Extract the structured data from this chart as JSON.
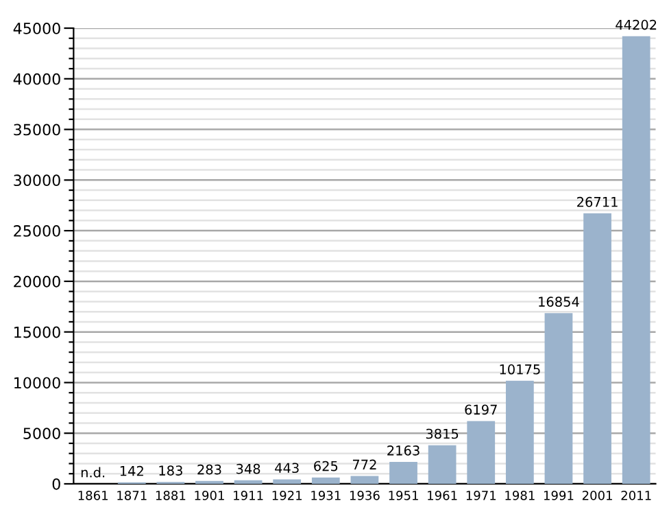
{
  "chart_data": {
    "type": "bar",
    "categories": [
      "1861",
      "1871",
      "1881",
      "1901",
      "1911",
      "1921",
      "1931",
      "1936",
      "1951",
      "1961",
      "1971",
      "1981",
      "1991",
      "2001",
      "2011"
    ],
    "values": [
      null,
      142,
      183,
      283,
      348,
      443,
      625,
      772,
      2163,
      3815,
      6197,
      10175,
      16854,
      26711,
      44202
    ],
    "value_labels": [
      "n.d.",
      "142",
      "183",
      "283",
      "348",
      "443",
      "625",
      "772",
      "2163",
      "3815",
      "6197",
      "10175",
      "16854",
      "26711",
      "44202"
    ],
    "color": "#9bb3cc",
    "ylim": [
      0,
      45000
    ],
    "yticks": [
      0,
      {
        "value": 1000,
        "label": null
      },
      {
        "value": 2000,
        "label": null
      },
      {
        "value": 3000,
        "label": null
      },
      {
        "value": 4000,
        "label": null
      },
      5000,
      {
        "value": 6000,
        "label": null
      },
      {
        "value": 7000,
        "label": null
      },
      {
        "value": 8000,
        "label": null
      },
      {
        "value": 9000,
        "label": null
      },
      10000,
      {
        "value": 11000,
        "label": null
      },
      {
        "value": 12000,
        "label": null
      },
      {
        "value": 13000,
        "label": null
      },
      {
        "value": 14000,
        "label": null
      },
      15000,
      {
        "value": 16000,
        "label": null
      },
      {
        "value": 17000,
        "label": null
      },
      {
        "value": 18000,
        "label": null
      },
      {
        "value": 19000,
        "label": null
      },
      20000,
      {
        "value": 21000,
        "label": null
      },
      {
        "value": 22000,
        "label": null
      },
      {
        "value": 23000,
        "label": null
      },
      {
        "value": 24000,
        "label": null
      },
      25000,
      {
        "value": 26000,
        "label": null
      },
      {
        "value": 27000,
        "label": null
      },
      {
        "value": 28000,
        "label": null
      },
      {
        "value": 29000,
        "label": null
      },
      30000,
      {
        "value": 31000,
        "label": null
      },
      {
        "value": 32000,
        "label": null
      },
      {
        "value": 33000,
        "label": null
      },
      {
        "value": 34000,
        "label": null
      },
      35000,
      {
        "value": 36000,
        "label": null
      },
      {
        "value": 37000,
        "label": null
      },
      {
        "value": 38000,
        "label": null
      },
      {
        "value": 39000,
        "label": null
      },
      40000,
      {
        "value": 41000,
        "label": null
      },
      {
        "value": 42000,
        "label": null
      },
      {
        "value": 43000,
        "label": null
      },
      {
        "value": 44000,
        "label": null
      },
      45000
    ],
    "grid": "y"
  }
}
